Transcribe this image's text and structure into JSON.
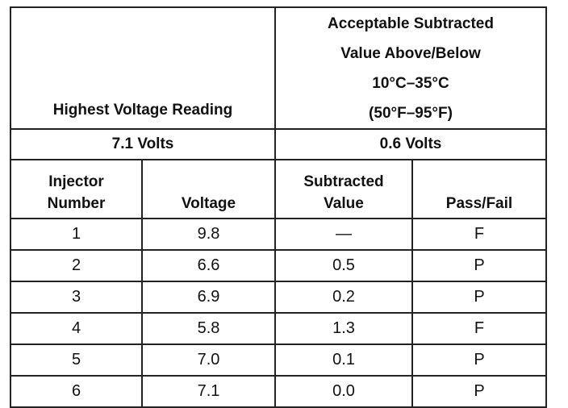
{
  "header": {
    "left_title": "Highest Voltage Reading",
    "right_title": [
      "Acceptable Subtracted",
      "Value Above/Below",
      "10°C–35°C",
      "(50°F–95°F)"
    ],
    "summary": [
      "7.1 Volts",
      "0.6 Volts"
    ]
  },
  "table": {
    "columns": [
      [
        "Injector",
        "Number"
      ],
      [
        "Voltage"
      ],
      [
        "Subtracted",
        "Value"
      ],
      [
        "Pass/Fail"
      ]
    ],
    "rows": [
      [
        "1",
        "9.8",
        "—",
        "F"
      ],
      [
        "2",
        "6.6",
        "0.5",
        "P"
      ],
      [
        "3",
        "6.9",
        "0.2",
        "P"
      ],
      [
        "4",
        "5.8",
        "1.3",
        "F"
      ],
      [
        "5",
        "7.0",
        "0.1",
        "P"
      ],
      [
        "6",
        "7.1",
        "0.0",
        "P"
      ]
    ]
  }
}
